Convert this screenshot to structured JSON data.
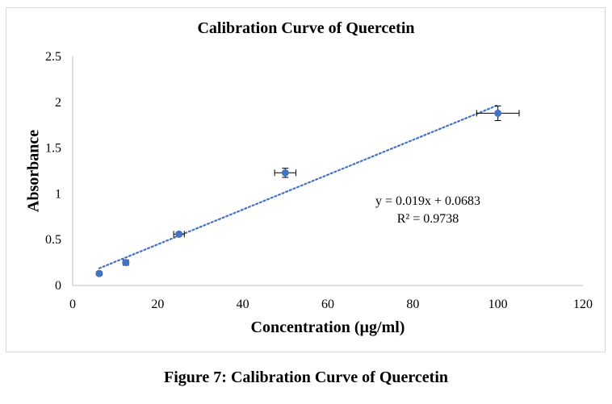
{
  "figure_caption": "Figure 7: Calibration Curve of Quercetin",
  "chart_data": {
    "type": "scatter",
    "title": "Calibration Curve of Quercetin",
    "xlabel": "Concentration (µg/ml)",
    "ylabel": "Absorbance",
    "xlim": [
      0,
      120
    ],
    "ylim": [
      0,
      2.5
    ],
    "x_ticks": [
      0,
      20,
      40,
      60,
      80,
      100,
      120
    ],
    "x_tick_labels": [
      "0",
      "20",
      "40",
      "60",
      "80",
      "100",
      "120"
    ],
    "y_ticks": [
      0,
      0.5,
      1,
      1.5,
      2,
      2.5
    ],
    "y_tick_labels": [
      "0",
      "0.5",
      "1",
      "1.5",
      "2",
      "2.5"
    ],
    "grid": false,
    "series": [
      {
        "name": "Quercetin",
        "color": "#4472c4",
        "x": [
          6.25,
          12.5,
          25,
          50,
          100
        ],
        "y": [
          0.13,
          0.25,
          0.56,
          1.23,
          1.88
        ],
        "x_error": [
          0.3,
          0.6,
          1.25,
          2.5,
          5
        ],
        "y_error": [
          0.02,
          0.02,
          0.02,
          0.05,
          0.08
        ]
      }
    ],
    "trendline": {
      "type": "linear",
      "style": "dotted",
      "color": "#4472c4",
      "slope": 0.019,
      "intercept": 0.0683,
      "x_range": [
        6.25,
        100
      ],
      "equation_label": "y = 0.019x + 0.0683",
      "r2_label": "R² = 0.9738"
    },
    "colors": {
      "axis": "#bfbfbf",
      "error_bar": "#000000",
      "frame": "#d9d9d9"
    }
  }
}
